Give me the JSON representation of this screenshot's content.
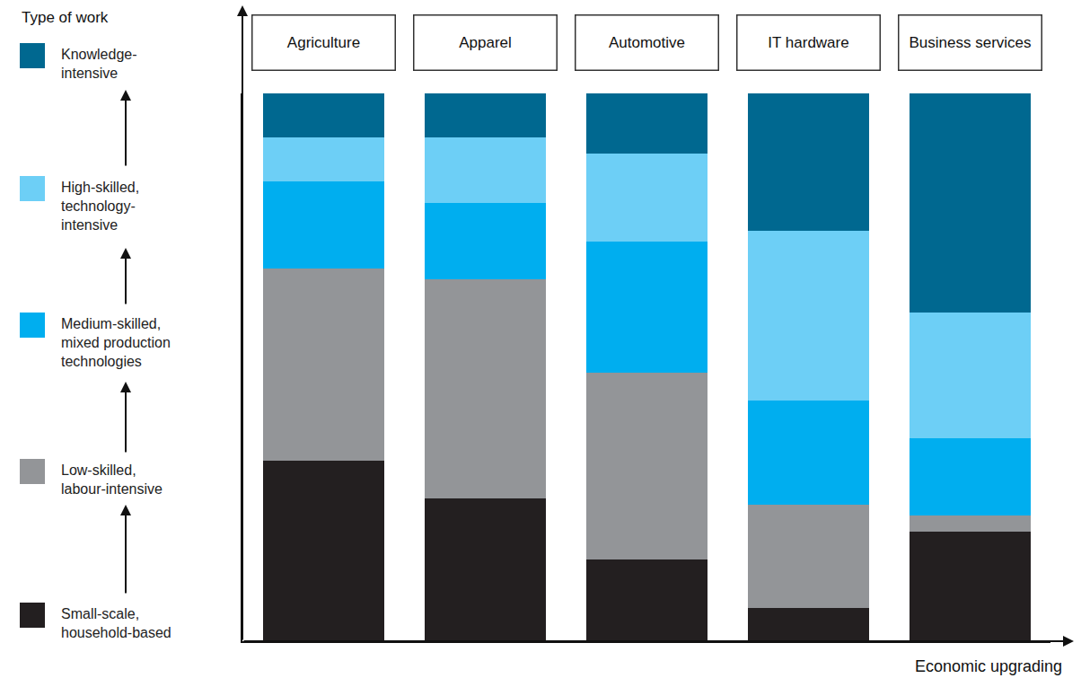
{
  "chart_data": {
    "type": "bar",
    "stacked": true,
    "legend_title": "Type of work",
    "x_label": "Economic upgrading",
    "categories": [
      "Agriculture",
      "Apparel",
      "Automotive",
      "IT hardware",
      "Business services"
    ],
    "series": [
      {
        "name": "Small-scale, household-based",
        "color": "#231f20",
        "values": [
          33,
          26,
          15,
          6,
          20
        ]
      },
      {
        "name": "Low-skilled, labour-intensive",
        "color": "#939598",
        "values": [
          35,
          40,
          34,
          19,
          3
        ]
      },
      {
        "name": "Medium-skilled, mixed production technologies",
        "color": "#00aeef",
        "values": [
          16,
          14,
          24,
          19,
          14
        ]
      },
      {
        "name": "High-skilled, technology-intensive",
        "color": "#6dcff6",
        "values": [
          8,
          12,
          16,
          31,
          23
        ]
      },
      {
        "name": "Knowledge-intensive",
        "color": "#006890",
        "values": [
          8,
          8,
          11,
          25,
          40
        ]
      }
    ],
    "ylim": [
      0,
      100
    ],
    "grid": false,
    "tick_labels": false
  }
}
